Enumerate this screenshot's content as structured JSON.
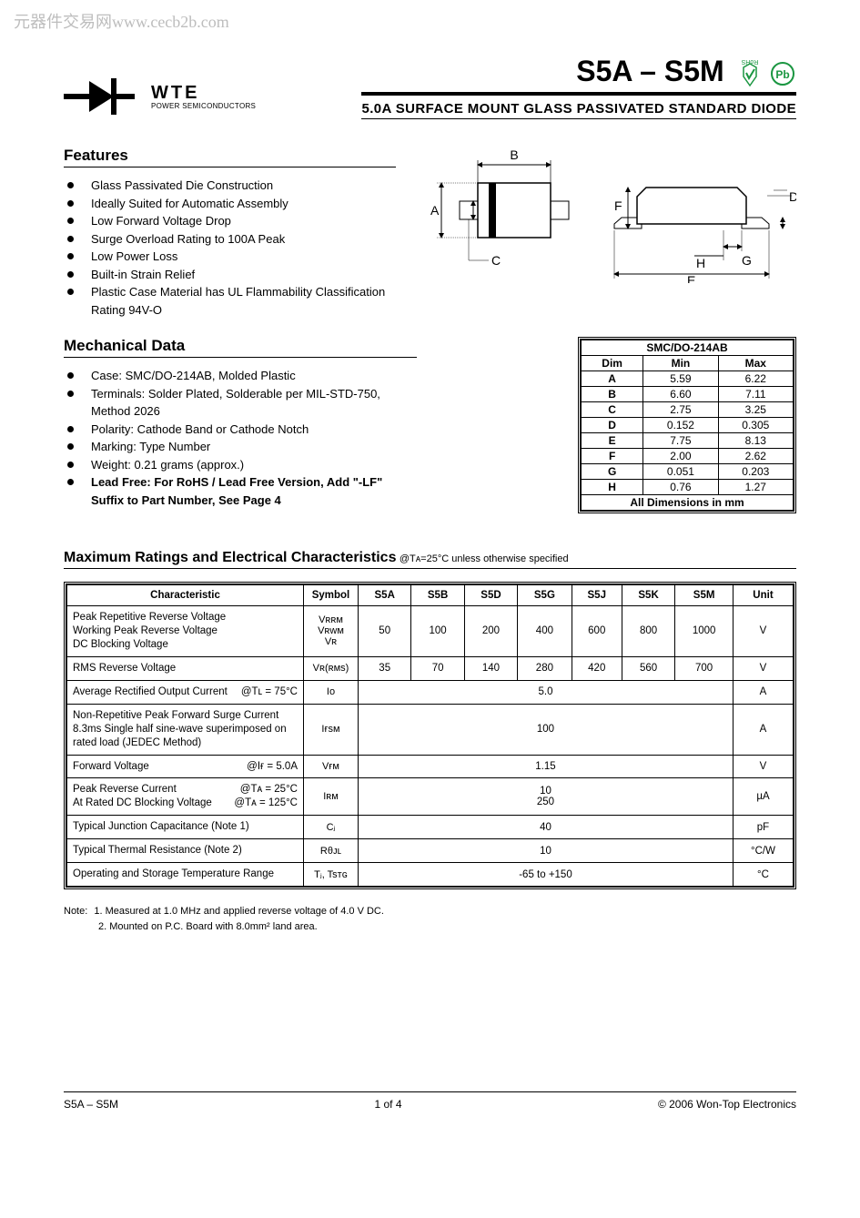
{
  "watermark": "元器件交易网www.cecb2b.com",
  "logo": {
    "brand": "WTE",
    "tagline": "POWER SEMICONDUCTORS"
  },
  "header": {
    "part_range": "S5A – S5M",
    "subtitle": "5.0A SURFACE MOUNT GLASS PASSIVATED STANDARD DIODE",
    "rohs_label": "RoHS",
    "pb_label": "Pb"
  },
  "features": {
    "title": "Features",
    "items": [
      "Glass Passivated Die Construction",
      "Ideally Suited for Automatic Assembly",
      "Low Forward Voltage Drop",
      "Surge Overload Rating to 100A Peak",
      "Low Power Loss",
      "Built-in Strain Relief",
      "Plastic Case Material has UL Flammability Classification Rating 94V-O"
    ]
  },
  "diagram": {
    "labels": [
      "A",
      "B",
      "C",
      "D",
      "E",
      "F",
      "G",
      "H"
    ]
  },
  "mechanical": {
    "title": "Mechanical Data",
    "items": [
      {
        "text": "Case: SMC/DO-214AB, Molded Plastic",
        "bold": false
      },
      {
        "text": "Terminals: Solder Plated, Solderable per MIL-STD-750, Method 2026",
        "bold": false
      },
      {
        "text": "Polarity: Cathode Band or Cathode Notch",
        "bold": false
      },
      {
        "text": "Marking: Type Number",
        "bold": false
      },
      {
        "text": "Weight: 0.21 grams (approx.)",
        "bold": false
      },
      {
        "text": "Lead Free: For RoHS / Lead Free Version, Add \"-LF\" Suffix to Part Number, See Page 4",
        "bold": true
      }
    ]
  },
  "dim_table": {
    "package": "SMC/DO-214AB",
    "headers": [
      "Dim",
      "Min",
      "Max"
    ],
    "rows": [
      [
        "A",
        "5.59",
        "6.22"
      ],
      [
        "B",
        "6.60",
        "7.11"
      ],
      [
        "C",
        "2.75",
        "3.25"
      ],
      [
        "D",
        "0.152",
        "0.305"
      ],
      [
        "E",
        "7.75",
        "8.13"
      ],
      [
        "F",
        "2.00",
        "2.62"
      ],
      [
        "G",
        "0.051",
        "0.203"
      ],
      [
        "H",
        "0.76",
        "1.27"
      ]
    ],
    "footer": "All Dimensions in mm"
  },
  "ratings": {
    "title": "Maximum Ratings and Electrical Characteristics",
    "condition": "@Tᴀ=25°C unless otherwise specified",
    "headers": [
      "Characteristic",
      "Symbol",
      "S5A",
      "S5B",
      "S5D",
      "S5G",
      "S5J",
      "S5K",
      "S5M",
      "Unit"
    ],
    "rows": [
      {
        "char_lines": [
          "Peak Repetitive Reverse Voltage",
          "Working Peak Reverse Voltage",
          "DC Blocking Voltage"
        ],
        "symbol_lines": [
          "Vʀʀᴍ",
          "Vʀᴡᴍ",
          "Vʀ"
        ],
        "values": [
          "50",
          "100",
          "200",
          "400",
          "600",
          "800",
          "1000"
        ],
        "unit": "V"
      },
      {
        "char_lines": [
          "RMS Reverse Voltage"
        ],
        "symbol_lines": [
          "Vʀ(ʀᴍs)"
        ],
        "values": [
          "35",
          "70",
          "140",
          "280",
          "420",
          "560",
          "700"
        ],
        "unit": "V"
      },
      {
        "char_left": "Average Rectified Output Current",
        "char_right": "@Tʟ = 75°C",
        "symbol_lines": [
          "Iᴏ"
        ],
        "span_value": "5.0",
        "unit": "A"
      },
      {
        "char_lines": [
          "Non-Repetitive Peak Forward Surge Current",
          "8.3ms Single half sine-wave superimposed on",
          "rated load (JEDEC Method)"
        ],
        "symbol_lines": [
          "Iғsᴍ"
        ],
        "span_value": "100",
        "unit": "A"
      },
      {
        "char_left": "Forward Voltage",
        "char_right": "@Iғ = 5.0A",
        "symbol_lines": [
          "Vғᴍ"
        ],
        "span_value": "1.15",
        "unit": "V"
      },
      {
        "char_left_lines": [
          "Peak Reverse Current",
          "At Rated DC Blocking Voltage"
        ],
        "char_right_lines": [
          "@Tᴀ = 25°C",
          "@Tᴀ = 125°C"
        ],
        "symbol_lines": [
          "Iʀᴍ"
        ],
        "span_value_lines": [
          "10",
          "250"
        ],
        "unit": "µA"
      },
      {
        "char_lines": [
          "Typical Junction Capacitance (Note 1)"
        ],
        "symbol_lines": [
          "Cⱼ"
        ],
        "span_value": "40",
        "unit": "pF"
      },
      {
        "char_lines": [
          "Typical Thermal Resistance (Note 2)"
        ],
        "symbol_lines": [
          "Rθᴊʟ"
        ],
        "span_value": "10",
        "unit": "°C/W"
      },
      {
        "char_lines": [
          "Operating and Storage Temperature Range"
        ],
        "symbol_lines": [
          "Tⱼ, Tsᴛɢ"
        ],
        "span_value": "-65 to +150",
        "unit": "°C"
      }
    ]
  },
  "notes": {
    "prefix": "Note:",
    "items": [
      "1. Measured at 1.0 MHz and applied reverse voltage of 4.0 V DC.",
      "2. Mounted on P.C. Board with 8.0mm² land area."
    ]
  },
  "footer": {
    "left": "S5A – S5M",
    "center": "1 of 4",
    "right": "© 2006 Won-Top Electronics"
  },
  "colors": {
    "rohs_green": "#1a9641",
    "pb_green": "#1a9641",
    "text": "#000000",
    "bg": "#ffffff"
  }
}
